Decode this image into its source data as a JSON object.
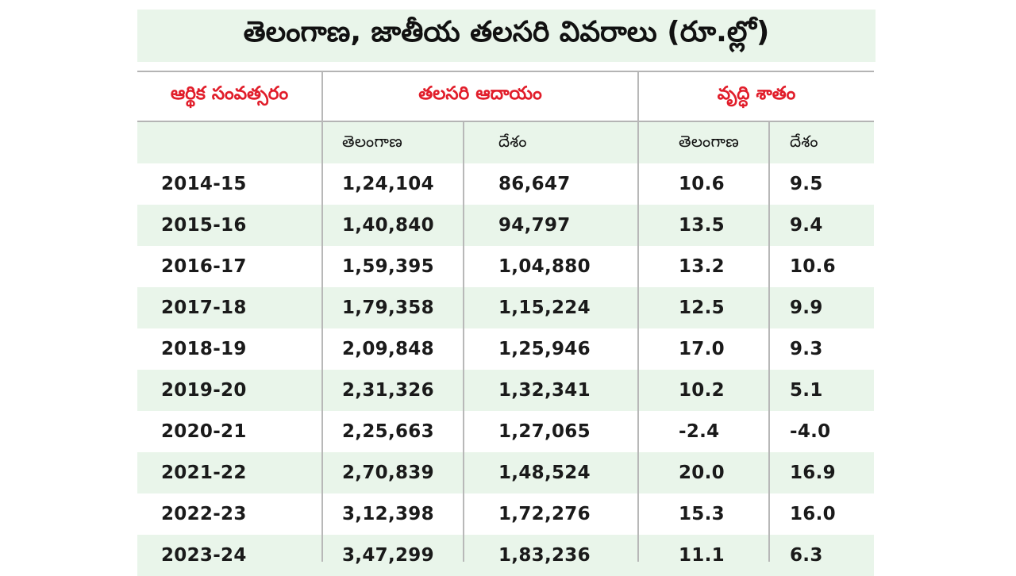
{
  "title": "తెలంగాణ, జాతీయ తలసరి వివరాలు (రూ.ల్లో)",
  "headers": {
    "year": "ఆర్థిక సంవత్సరం",
    "income": "తలసరి ఆదాయం",
    "growth": "వృద్ధి శాతం",
    "telangana": "తెలంగాణ",
    "country": "దేశం"
  },
  "colors": {
    "header_text": "#e11d2a",
    "band": "#e9f5ea"
  },
  "chart_data": {
    "type": "table",
    "columns": [
      "ఆర్థిక సంవత్సరం",
      "తలసరి ఆదాయం — తెలంగాణ",
      "తలసరి ఆదాయం — దేశం",
      "వృద్ధి శాతం — తెలంగాణ",
      "వృద్ధి శాతం — దేశం"
    ],
    "rows": [
      [
        "2014-15",
        "1,24,104",
        "86,647",
        "10.6",
        "9.5"
      ],
      [
        "2015-16",
        "1,40,840",
        "94,797",
        "13.5",
        "9.4"
      ],
      [
        "2016-17",
        "1,59,395",
        "1,04,880",
        "13.2",
        "10.6"
      ],
      [
        "2017-18",
        "1,79,358",
        "1,15,224",
        "12.5",
        "9.9"
      ],
      [
        "2018-19",
        "2,09,848",
        "1,25,946",
        "17.0",
        "9.3"
      ],
      [
        "2019-20",
        "2,31,326",
        "1,32,341",
        "10.2",
        "5.1"
      ],
      [
        "2020-21",
        "2,25,663",
        "1,27,065",
        "-2.4",
        "-4.0"
      ],
      [
        "2021-22",
        "2,70,839",
        "1,48,524",
        "20.0",
        "16.9"
      ],
      [
        "2022-23",
        "3,12,398",
        "1,72,276",
        "15.3",
        "16.0"
      ],
      [
        "2023-24",
        "3,47,299",
        "1,83,236",
        "11.1",
        "6.3"
      ]
    ]
  }
}
